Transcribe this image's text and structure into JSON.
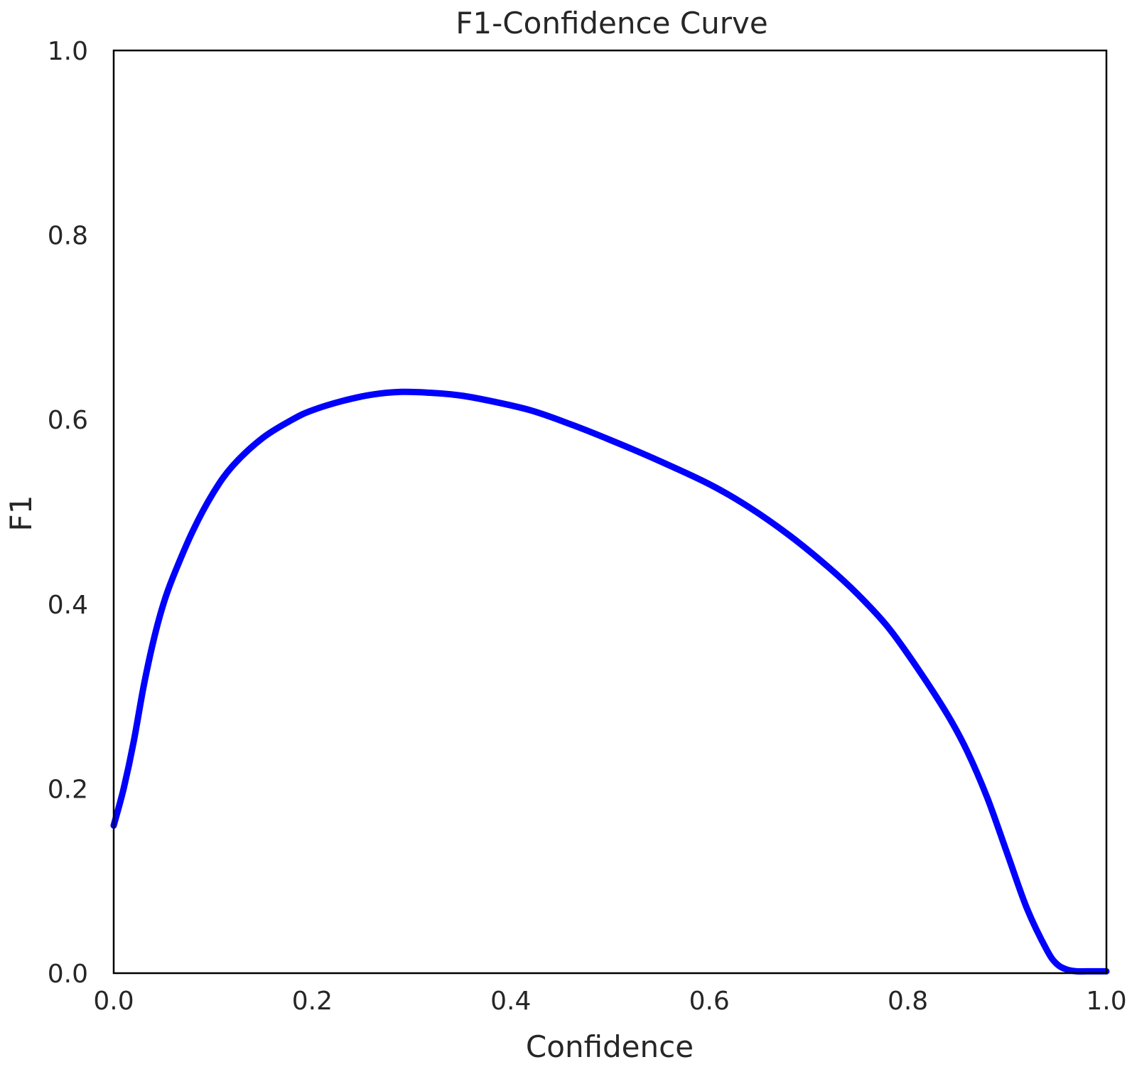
{
  "chart_data": {
    "type": "line",
    "title": "F1-Confidence Curve",
    "xlabel": "Confidence",
    "ylabel": "F1",
    "xlim": [
      0.0,
      1.0
    ],
    "ylim": [
      0.0,
      1.0
    ],
    "xticks": [
      "0.0",
      "0.2",
      "0.4",
      "0.6",
      "0.8",
      "1.0"
    ],
    "yticks": [
      "0.0",
      "0.2",
      "0.4",
      "0.6",
      "0.8",
      "1.0"
    ],
    "grid": false,
    "legend": "none",
    "series": [
      {
        "color": "#0000ff",
        "x": [
          0.0,
          0.01,
          0.02,
          0.03,
          0.04,
          0.05,
          0.06,
          0.08,
          0.1,
          0.12,
          0.15,
          0.18,
          0.2,
          0.23,
          0.26,
          0.29,
          0.32,
          0.35,
          0.38,
          0.42,
          0.46,
          0.5,
          0.55,
          0.6,
          0.64,
          0.68,
          0.72,
          0.75,
          0.78,
          0.81,
          0.84,
          0.86,
          0.88,
          0.9,
          0.92,
          0.94,
          0.95,
          0.96,
          0.97,
          0.98,
          0.99,
          1.0
        ],
        "y": [
          0.16,
          0.2,
          0.25,
          0.31,
          0.36,
          0.4,
          0.43,
          0.48,
          0.52,
          0.55,
          0.58,
          0.6,
          0.61,
          0.62,
          0.627,
          0.63,
          0.629,
          0.626,
          0.62,
          0.61,
          0.595,
          0.578,
          0.555,
          0.53,
          0.505,
          0.475,
          0.44,
          0.41,
          0.375,
          0.33,
          0.28,
          0.24,
          0.19,
          0.13,
          0.07,
          0.025,
          0.01,
          0.004,
          0.002,
          0.002,
          0.002,
          0.002
        ]
      }
    ]
  }
}
